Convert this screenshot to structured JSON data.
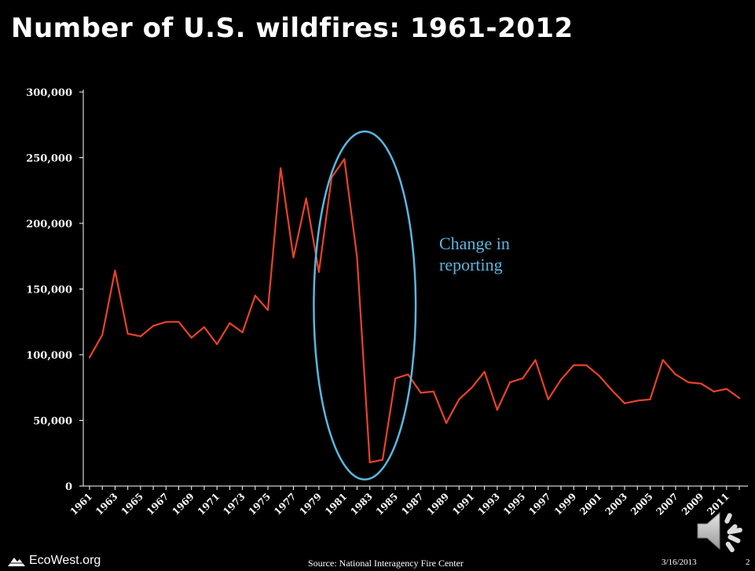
{
  "slide": {
    "title": "Number of U.S. wildfires: 1961-2012",
    "annotation_line1": "Change in",
    "annotation_line2": "reporting",
    "logo_text": "EcoWest.org",
    "source": "Source:  National Interagency Fire Center",
    "date": "3/16/2013",
    "page_number": "2",
    "icons": {
      "logo": "mountain-logo-icon",
      "audio": "speaker-icon"
    },
    "colors": {
      "background": "#000000",
      "line": "#e8432a",
      "annotation": "#5bb6e0",
      "text": "#ffffff"
    }
  },
  "chart_data": {
    "type": "line",
    "title": "Number of U.S. wildfires: 1961-2012",
    "xlabel": "",
    "ylabel": "",
    "x": [
      1961,
      1962,
      1963,
      1964,
      1965,
      1966,
      1967,
      1968,
      1969,
      1970,
      1971,
      1972,
      1973,
      1974,
      1975,
      1976,
      1977,
      1978,
      1979,
      1980,
      1981,
      1982,
      1983,
      1984,
      1985,
      1986,
      1987,
      1988,
      1989,
      1990,
      1991,
      1992,
      1993,
      1994,
      1995,
      1996,
      1997,
      1998,
      1999,
      2000,
      2001,
      2002,
      2003,
      2004,
      2005,
      2006,
      2007,
      2008,
      2009,
      2010,
      2011,
      2012
    ],
    "series": [
      {
        "values": [
          98000,
          115000,
          164000,
          116000,
          114000,
          122000,
          125000,
          125000,
          113000,
          121000,
          108000,
          124000,
          117000,
          145000,
          134000,
          242000,
          174000,
          219000,
          163000,
          235000,
          249000,
          174000,
          18000,
          20000,
          82000,
          85000,
          71000,
          72000,
          48000,
          66000,
          75000,
          87000,
          58000,
          79000,
          82000,
          96000,
          66000,
          81000,
          92000,
          92000,
          84000,
          73000,
          63000,
          65000,
          66000,
          96000,
          85000,
          79000,
          78000,
          72000,
          74000,
          67000
        ]
      }
    ],
    "yticks": [
      0,
      50000,
      100000,
      150000,
      200000,
      250000,
      300000
    ],
    "ytick_labels": [
      "0",
      "50,000",
      "100,000",
      "150,000",
      "200,000",
      "250,000",
      "300,000"
    ],
    "xtick_labels": [
      "1961",
      "1963",
      "1965",
      "1967",
      "1969",
      "1971",
      "1973",
      "1975",
      "1977",
      "1979",
      "1981",
      "1983",
      "1985",
      "1987",
      "1989",
      "1991",
      "1993",
      "1995",
      "1997",
      "1999",
      "2001",
      "2003",
      "2005",
      "2007",
      "2009",
      "2011"
    ],
    "ylim": [
      0,
      300000
    ],
    "xlim": [
      1961,
      2012
    ],
    "grid": false,
    "legend": "none",
    "annotation": {
      "text": "Change in reporting",
      "shape": "ellipse",
      "x_center": 1982.6,
      "x_radius": 4,
      "y_range": [
        5000,
        270000
      ]
    }
  }
}
